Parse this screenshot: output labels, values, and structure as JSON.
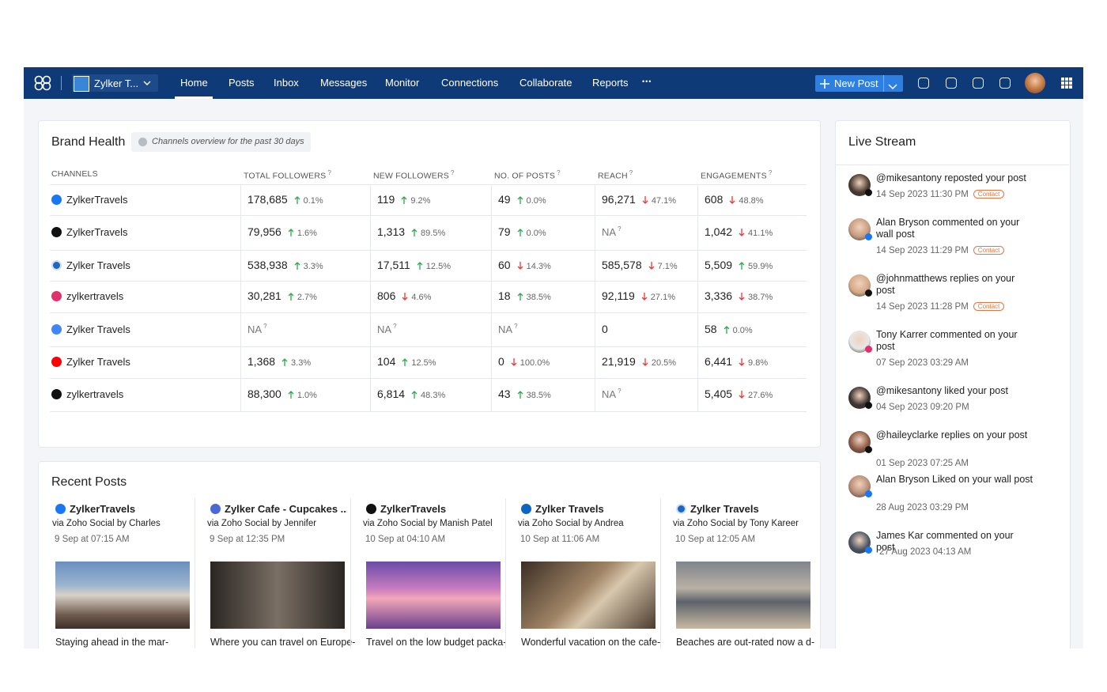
{
  "nav": {
    "brand": "Zylker T...",
    "items": [
      "Home",
      "Posts",
      "Inbox",
      "Messages",
      "Monitor",
      "Connections",
      "Collaborate",
      "Reports"
    ],
    "more": "•••",
    "new_post": "New Post",
    "active": 0
  },
  "brand_health": {
    "title": "Brand Health",
    "subtitle": "Channels overview for the past 30 days",
    "columns": [
      {
        "label": "CHANNELS"
      },
      {
        "label": "TOTAL FOLLOWERS",
        "help": "?"
      },
      {
        "label": "NEW FOLLOWERS",
        "help": "?"
      },
      {
        "label": "NO. OF POSTS",
        "help": "?"
      },
      {
        "label": "REACH",
        "help": "?"
      },
      {
        "label": "ENGAGEMENTS",
        "help": "?"
      }
    ],
    "rows": [
      {
        "network": "facebook",
        "channel": "ZylkerTravels",
        "cells": [
          {
            "value": "178,685",
            "change": "0.1%",
            "trend": "up"
          },
          {
            "value": "119",
            "change": "9.2%",
            "trend": "up"
          },
          {
            "value": "49",
            "change": "0.0%",
            "trend": "up"
          },
          {
            "value": "96,271",
            "change": "47.1%",
            "trend": "down"
          },
          {
            "value": "608",
            "change": "48.8%",
            "trend": "down"
          }
        ]
      },
      {
        "network": "x",
        "channel": "ZylkerTravels",
        "cells": [
          {
            "value": "79,956",
            "change": "1.6%",
            "trend": "up"
          },
          {
            "value": "1,313",
            "change": "89.5%",
            "trend": "up"
          },
          {
            "value": "79",
            "change": "0.0%",
            "trend": "up"
          },
          {
            "value": "NA",
            "help": "?"
          },
          {
            "value": "1,042",
            "change": "41.1%",
            "trend": "down"
          }
        ]
      },
      {
        "network": "linkedin-page",
        "channel": "Zylker Travels",
        "cells": [
          {
            "value": "538,938",
            "change": "3.3%",
            "trend": "up"
          },
          {
            "value": "17,511",
            "change": "12.5%",
            "trend": "up"
          },
          {
            "value": "60",
            "change": "14.3%",
            "trend": "down"
          },
          {
            "value": "585,578",
            "change": "7.1%",
            "trend": "down"
          },
          {
            "value": "5,509",
            "change": "59.9%",
            "trend": "up"
          }
        ]
      },
      {
        "network": "instagram",
        "channel": "zylkertravels",
        "cells": [
          {
            "value": "30,281",
            "change": "2.7%",
            "trend": "up"
          },
          {
            "value": "806",
            "change": "4.6%",
            "trend": "down"
          },
          {
            "value": "18",
            "change": "38.5%",
            "trend": "up"
          },
          {
            "value": "92,119",
            "change": "27.1%",
            "trend": "down"
          },
          {
            "value": "3,336",
            "change": "38.7%",
            "trend": "down"
          }
        ]
      },
      {
        "network": "google",
        "channel": "Zylker Travels",
        "cells": [
          {
            "value": "NA",
            "help": "?"
          },
          {
            "value": "NA",
            "help": "?"
          },
          {
            "value": "NA",
            "help": "?"
          },
          {
            "value": "0"
          },
          {
            "value": "58",
            "change": "0.0%",
            "trend": "up"
          }
        ]
      },
      {
        "network": "youtube",
        "channel": "Zylker Travels",
        "cells": [
          {
            "value": "1,368",
            "change": "3.3%",
            "trend": "up"
          },
          {
            "value": "104",
            "change": "12.5%",
            "trend": "up"
          },
          {
            "value": "0",
            "change": "100.0%",
            "trend": "down"
          },
          {
            "value": "21,919",
            "change": "20.5%",
            "trend": "down"
          },
          {
            "value": "6,441",
            "change": "9.8%",
            "trend": "down"
          }
        ]
      },
      {
        "network": "tiktok",
        "channel": "zylkertravels",
        "cells": [
          {
            "value": "88,300",
            "change": "1.0%",
            "trend": "up"
          },
          {
            "value": "6,814",
            "change": "48.3%",
            "trend": "up"
          },
          {
            "value": "43",
            "change": "38.5%",
            "trend": "up"
          },
          {
            "value": "NA",
            "help": "?"
          },
          {
            "value": "5,405",
            "change": "27.6%",
            "trend": "down"
          }
        ]
      }
    ]
  },
  "recent_posts": {
    "title": "Recent Posts",
    "posts": [
      {
        "network": "facebook",
        "account": "ZylkerTravels",
        "via": "via Zoho Social by Charles",
        "date": "9 Sep at 07:15 AM",
        "caption": "Staying ahead in the mar-"
      },
      {
        "network": "workplace",
        "account": "Zylker Cafe - Cupcakes ...",
        "via": "via Zoho Social by Jennifer",
        "date": "9 Sep at 12:35 PM",
        "caption": "Where you can travel on Europe-"
      },
      {
        "network": "x",
        "account": "ZylkerTravels",
        "via": "via Zoho Social by Manish Patel",
        "date": "10 Sep at 04:10 AM",
        "caption": "Travel on the low budget packa-"
      },
      {
        "network": "linkedin",
        "account": "Zylker Travels",
        "via": "via Zoho Social by Andrea",
        "date": "10 Sep at 11:06 AM",
        "caption": "Wonderful vacation on the cafe-"
      },
      {
        "network": "linkedin-page",
        "account": "Zylker Travels",
        "via": "via Zoho Social by Tony Kareer",
        "date": "10 Sep at 12:05 AM",
        "caption": "Beaches are out-rated now a d-"
      }
    ]
  },
  "live_stream": {
    "title": "Live Stream",
    "items": [
      {
        "network": "x",
        "text": "@mikesantony reposted your post",
        "time": "14 Sep 2023 11:30 PM",
        "tag": "Contact"
      },
      {
        "network": "facebook",
        "text": "Alan Bryson commented on your wall post",
        "time": "14 Sep 2023 11:29 PM",
        "tag": "Contact"
      },
      {
        "network": "x",
        "text": "@johnmatthews replies on your post",
        "time": "14 Sep 2023 11:28 PM",
        "tag": "Contact"
      },
      {
        "network": "instagram",
        "text": "Tony Karrer commented on your post",
        "time": "07 Sep 2023 03:29 AM"
      },
      {
        "network": "x",
        "text": "@mikesantony liked your post",
        "time": "04 Sep 2023 09:20 PM"
      },
      {
        "network": "x",
        "text": "@haileyclarke replies on your post",
        "time": "01 Sep 2023 07:25 AM"
      },
      {
        "network": "facebook",
        "text": "Alan Bryson Liked on your wall post",
        "time": "28 Aug 2023 03:29 PM"
      },
      {
        "network": "facebook",
        "text": "James Kar commented on your post",
        "time": "27 Aug 2023 04:13 AM"
      }
    ]
  }
}
